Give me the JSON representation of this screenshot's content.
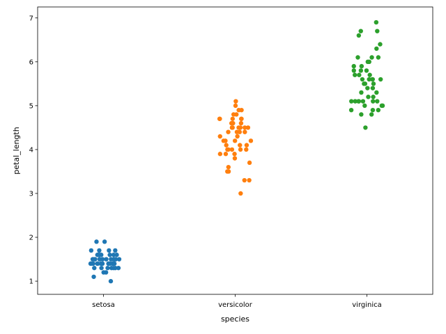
{
  "chart_data": {
    "type": "scatter",
    "subtype": "strip",
    "title": "",
    "xlabel": "species",
    "ylabel": "petal_length",
    "ylim": [
      0.7,
      7.25
    ],
    "yticks": [
      1,
      2,
      3,
      4,
      5,
      6,
      7
    ],
    "grid": false,
    "legend": "none",
    "categories": [
      "setosa",
      "versicolor",
      "virginica"
    ],
    "series": [
      {
        "color": "#1f77b4",
        "values": [
          1.4,
          1.4,
          1.3,
          1.5,
          1.4,
          1.7,
          1.4,
          1.5,
          1.4,
          1.5,
          1.5,
          1.6,
          1.4,
          1.1,
          1.2,
          1.5,
          1.3,
          1.4,
          1.7,
          1.5,
          1.7,
          1.5,
          1.0,
          1.7,
          1.9,
          1.6,
          1.6,
          1.5,
          1.4,
          1.6,
          1.6,
          1.5,
          1.5,
          1.4,
          1.5,
          1.2,
          1.3,
          1.4,
          1.3,
          1.5,
          1.3,
          1.3,
          1.3,
          1.6,
          1.9,
          1.4,
          1.6,
          1.4,
          1.5,
          1.4
        ]
      },
      {
        "color": "#ff7f0e",
        "values": [
          4.7,
          4.5,
          4.9,
          4.0,
          4.6,
          4.5,
          4.7,
          3.3,
          4.6,
          3.9,
          3.5,
          4.2,
          4.0,
          4.7,
          3.6,
          4.4,
          4.5,
          4.1,
          4.5,
          3.9,
          4.8,
          4.0,
          4.9,
          4.7,
          4.3,
          4.4,
          4.8,
          5.0,
          4.5,
          3.5,
          3.8,
          3.7,
          3.9,
          5.1,
          4.5,
          4.5,
          4.7,
          4.4,
          4.1,
          4.0,
          4.4,
          4.6,
          4.0,
          3.3,
          4.2,
          4.2,
          4.2,
          4.3,
          3.0,
          4.1
        ]
      },
      {
        "color": "#2ca02c",
        "values": [
          6.0,
          5.1,
          5.9,
          5.6,
          5.8,
          6.6,
          4.5,
          6.3,
          5.8,
          6.1,
          5.1,
          5.3,
          5.5,
          5.0,
          5.1,
          5.3,
          5.5,
          6.7,
          6.9,
          5.0,
          5.7,
          4.9,
          6.7,
          4.9,
          5.7,
          6.0,
          4.8,
          4.9,
          5.6,
          5.8,
          6.1,
          6.4,
          5.6,
          5.1,
          5.6,
          6.1,
          5.6,
          5.5,
          4.8,
          5.4,
          5.6,
          5.1,
          5.1,
          5.9,
          5.7,
          5.2,
          5.0,
          5.2,
          5.4,
          5.1
        ]
      }
    ]
  }
}
